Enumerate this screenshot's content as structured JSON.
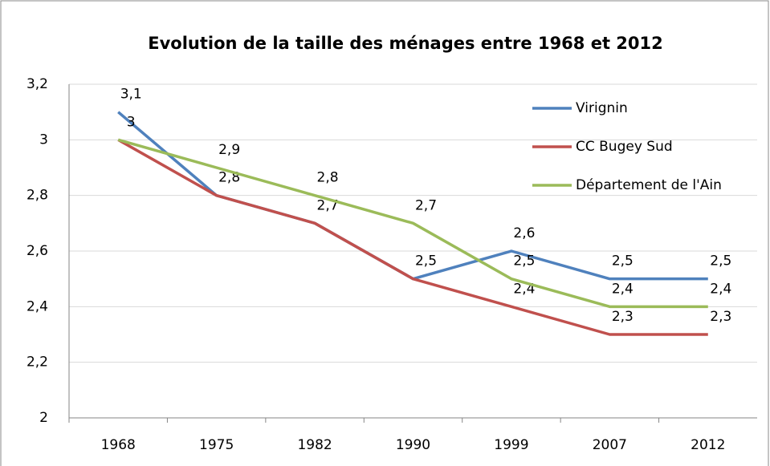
{
  "chart_data": {
    "type": "line",
    "title": "Evolution de la taille des ménages entre 1968 et 2012",
    "categories": [
      "1968",
      "1975",
      "1982",
      "1990",
      "1999",
      "2007",
      "2012"
    ],
    "series": [
      {
        "name": "Virignin",
        "color": "#4f81bd",
        "values": [
          3.1,
          2.8,
          2.7,
          2.5,
          2.6,
          2.5,
          2.5
        ],
        "value_labels": [
          "3,1",
          null,
          null,
          null,
          "2,6",
          "2,5",
          "2,5"
        ]
      },
      {
        "name": "CC Bugey Sud",
        "color": "#c0504d",
        "values": [
          3,
          2.8,
          2.7,
          2.5,
          2.4,
          2.3,
          2.3
        ],
        "value_labels": [
          "3",
          "2,8",
          "2,7",
          "2,5",
          "2,4",
          "2,3",
          "2,3"
        ]
      },
      {
        "name": "Département de l'Ain",
        "color": "#9bbb59",
        "values": [
          3,
          2.9,
          2.8,
          2.7,
          2.5,
          2.4,
          2.4
        ],
        "value_labels": [
          null,
          "2,9",
          "2,8",
          "2,7",
          "2,5",
          "2,4",
          "2,4"
        ]
      }
    ],
    "ylim": [
      2,
      3.2
    ],
    "yticks": [
      2,
      {
        "value": 2.2,
        "label": "2,2"
      },
      {
        "value": 2.4,
        "label": "2,4"
      },
      {
        "value": 2.6,
        "label": "2,6"
      },
      {
        "value": 2.8,
        "label": "2,8"
      },
      3,
      {
        "value": 3.2,
        "label": "3,2"
      }
    ],
    "grid": true,
    "legend": "right"
  }
}
